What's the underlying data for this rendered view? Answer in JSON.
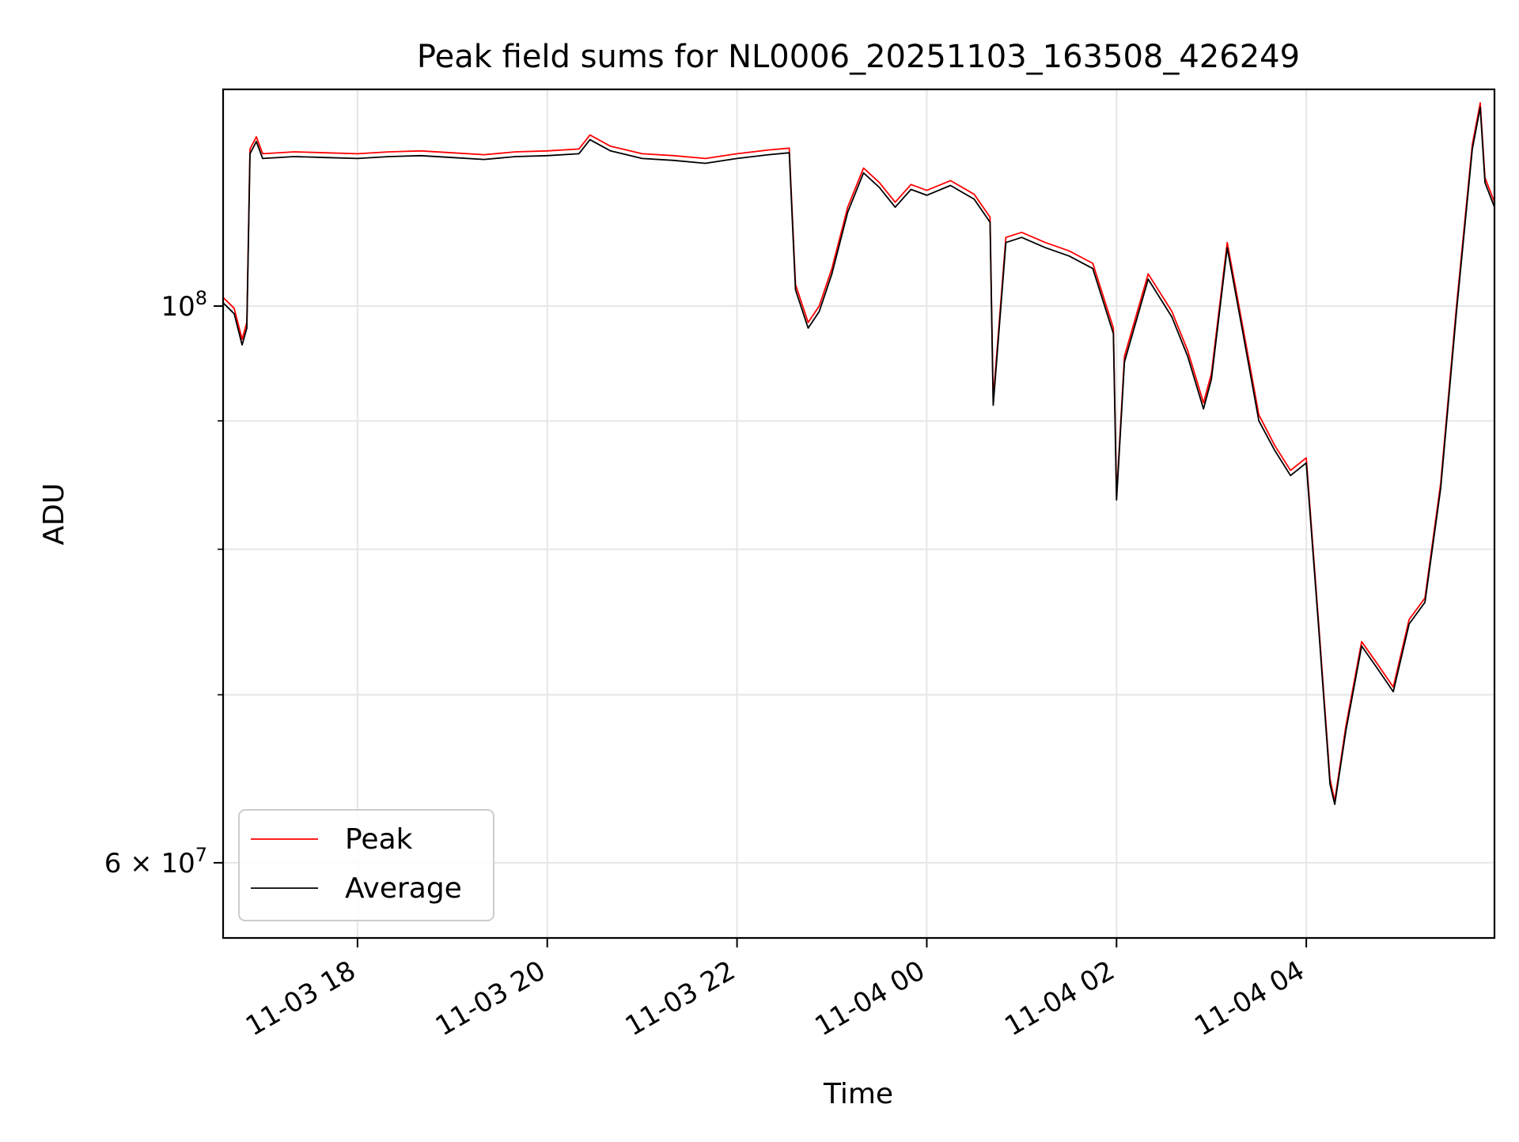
{
  "chart_data": {
    "type": "line",
    "title": "Peak field sums for NL0006_20251103_163508_426249",
    "xlabel": "Time",
    "ylabel": "ADU",
    "y_scale": "log",
    "x_range": [
      "2025-11-03 16:35",
      "2025-11-04 05:59"
    ],
    "ylim": [
      56000000,
      122000000
    ],
    "grid": true,
    "legend_position": "lower-left",
    "x_ticks": [
      {
        "value": "2025-11-03 18:00",
        "label": "11-03 18"
      },
      {
        "value": "2025-11-03 20:00",
        "label": "11-03 20"
      },
      {
        "value": "2025-11-03 22:00",
        "label": "11-03 22"
      },
      {
        "value": "2025-11-04 00:00",
        "label": "11-04 00"
      },
      {
        "value": "2025-11-04 02:00",
        "label": "11-04 02"
      },
      {
        "value": "2025-11-04 04:00",
        "label": "11-04 04"
      }
    ],
    "y_major_ticks": [
      {
        "value": 100000000,
        "base": "10",
        "exp": "8",
        "mantissa": ""
      },
      {
        "value": 60000000,
        "base": "10",
        "exp": "7",
        "mantissa": "6"
      }
    ],
    "y_minor_ticks": [
      70000000,
      80000000,
      90000000
    ],
    "colors": {
      "Peak": "#ff0000",
      "Average": "#000000"
    },
    "x": [
      "2025-11-03 16:35",
      "2025-11-03 16:42",
      "2025-11-03 16:47",
      "2025-11-03 16:50",
      "2025-11-03 16:52",
      "2025-11-03 16:56",
      "2025-11-03 17:00",
      "2025-11-03 17:20",
      "2025-11-03 17:40",
      "2025-11-03 18:00",
      "2025-11-03 18:20",
      "2025-11-03 18:40",
      "2025-11-03 19:00",
      "2025-11-03 19:20",
      "2025-11-03 19:40",
      "2025-11-03 20:00",
      "2025-11-03 20:20",
      "2025-11-03 20:27",
      "2025-11-03 20:40",
      "2025-11-03 21:00",
      "2025-11-03 21:20",
      "2025-11-03 21:40",
      "2025-11-03 22:00",
      "2025-11-03 22:20",
      "2025-11-03 22:33",
      "2025-11-03 22:37",
      "2025-11-03 22:45",
      "2025-11-03 22:52",
      "2025-11-03 23:00",
      "2025-11-03 23:10",
      "2025-11-03 23:20",
      "2025-11-03 23:30",
      "2025-11-03 23:40",
      "2025-11-03 23:50",
      "2025-11-04 00:00",
      "2025-11-04 00:15",
      "2025-11-04 00:30",
      "2025-11-04 00:40",
      "2025-11-04 00:42",
      "2025-11-04 00:50",
      "2025-11-04 01:00",
      "2025-11-04 01:15",
      "2025-11-04 01:30",
      "2025-11-04 01:45",
      "2025-11-04 01:58",
      "2025-11-04 02:00",
      "2025-11-04 02:05",
      "2025-11-04 02:20",
      "2025-11-04 02:35",
      "2025-11-04 02:45",
      "2025-11-04 02:55",
      "2025-11-04 03:00",
      "2025-11-04 03:10",
      "2025-11-04 03:20",
      "2025-11-04 03:30",
      "2025-11-04 03:40",
      "2025-11-04 03:50",
      "2025-11-04 04:00",
      "2025-11-04 04:08",
      "2025-11-04 04:15",
      "2025-11-04 04:18",
      "2025-11-04 04:25",
      "2025-11-04 04:35",
      "2025-11-04 04:45",
      "2025-11-04 04:55",
      "2025-11-04 05:05",
      "2025-11-04 05:15",
      "2025-11-04 05:25",
      "2025-11-04 05:35",
      "2025-11-04 05:45",
      "2025-11-04 05:50",
      "2025-11-04 05:53",
      "2025-11-04 05:59"
    ],
    "series": [
      {
        "name": "Peak",
        "values": [
          100800000,
          99800000,
          97000000,
          98500000,
          115500000,
          116800000,
          115000000,
          115200000,
          115100000,
          115000000,
          115200000,
          115300000,
          115100000,
          114900000,
          115200000,
          115300000,
          115500000,
          117000000,
          115800000,
          115000000,
          114800000,
          114500000,
          115000000,
          115400000,
          115600000,
          102000000,
          98500000,
          100000000,
          103500000,
          109500000,
          113500000,
          112000000,
          110000000,
          111800000,
          111200000,
          112200000,
          110800000,
          108500000,
          91800000,
          106500000,
          107000000,
          106000000,
          105200000,
          104000000,
          98000000,
          84000000,
          95500000,
          103000000,
          99500000,
          96000000,
          91500000,
          94000000,
          106000000,
          98000000,
          90500000,
          88000000,
          86000000,
          87000000,
          74500000,
          64800000,
          63500000,
          68000000,
          73500000,
          72000000,
          70500000,
          75000000,
          76500000,
          85000000,
          100000000,
          116000000,
          120500000,
          112500000,
          110000000
        ]
      },
      {
        "name": "Average",
        "values": [
          100300000,
          99300000,
          96500000,
          98000000,
          115000000,
          116300000,
          114500000,
          114700000,
          114600000,
          114500000,
          114700000,
          114800000,
          114600000,
          114400000,
          114700000,
          114800000,
          115000000,
          116500000,
          115300000,
          114500000,
          114300000,
          114000000,
          114500000,
          114900000,
          115100000,
          101500000,
          98000000,
          99500000,
          103000000,
          109000000,
          113000000,
          111500000,
          109500000,
          111300000,
          110700000,
          111700000,
          110300000,
          108000000,
          91300000,
          106000000,
          106500000,
          105500000,
          104700000,
          103500000,
          97500000,
          83700000,
          95000000,
          102500000,
          99000000,
          95500000,
          91000000,
          93500000,
          105500000,
          97500000,
          90000000,
          87600000,
          85600000,
          86600000,
          74200000,
          64500000,
          63300000,
          67700000,
          73200000,
          71700000,
          70200000,
          74700000,
          76200000,
          84600000,
          99500000,
          115500000,
          120000000,
          112000000,
          109500000
        ]
      }
    ]
  }
}
